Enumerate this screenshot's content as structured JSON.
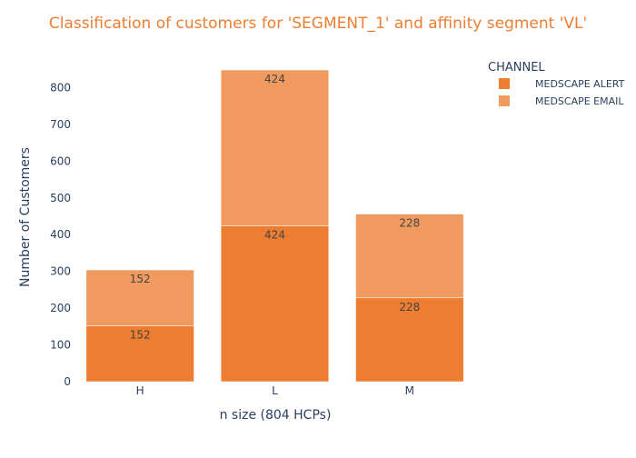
{
  "chart_data": {
    "type": "bar",
    "stacked": true,
    "title": "Classification of customers for 'SEGMENT_1' and affinity segment 'VL'",
    "xlabel": "n size (804 HCPs)",
    "ylabel": "Number of Customers",
    "categories": [
      "H",
      "L",
      "M"
    ],
    "ylim": [
      0,
      848
    ],
    "yticks": [
      0,
      100,
      200,
      300,
      400,
      500,
      600,
      700,
      800
    ],
    "legend_title": "CHANNEL",
    "legend_position": "top-right",
    "grid": false,
    "series": [
      {
        "name": "MEDSCAPE ALERT",
        "values": [
          152,
          424,
          228
        ],
        "color": "#ED7D31"
      },
      {
        "name": "MEDSCAPE EMAIL",
        "values": [
          152,
          424,
          228
        ],
        "color": "#F09A5F"
      }
    ],
    "colors": {
      "title": "#ED7D31",
      "text": "#2A3F5F",
      "label": "#444444"
    }
  }
}
